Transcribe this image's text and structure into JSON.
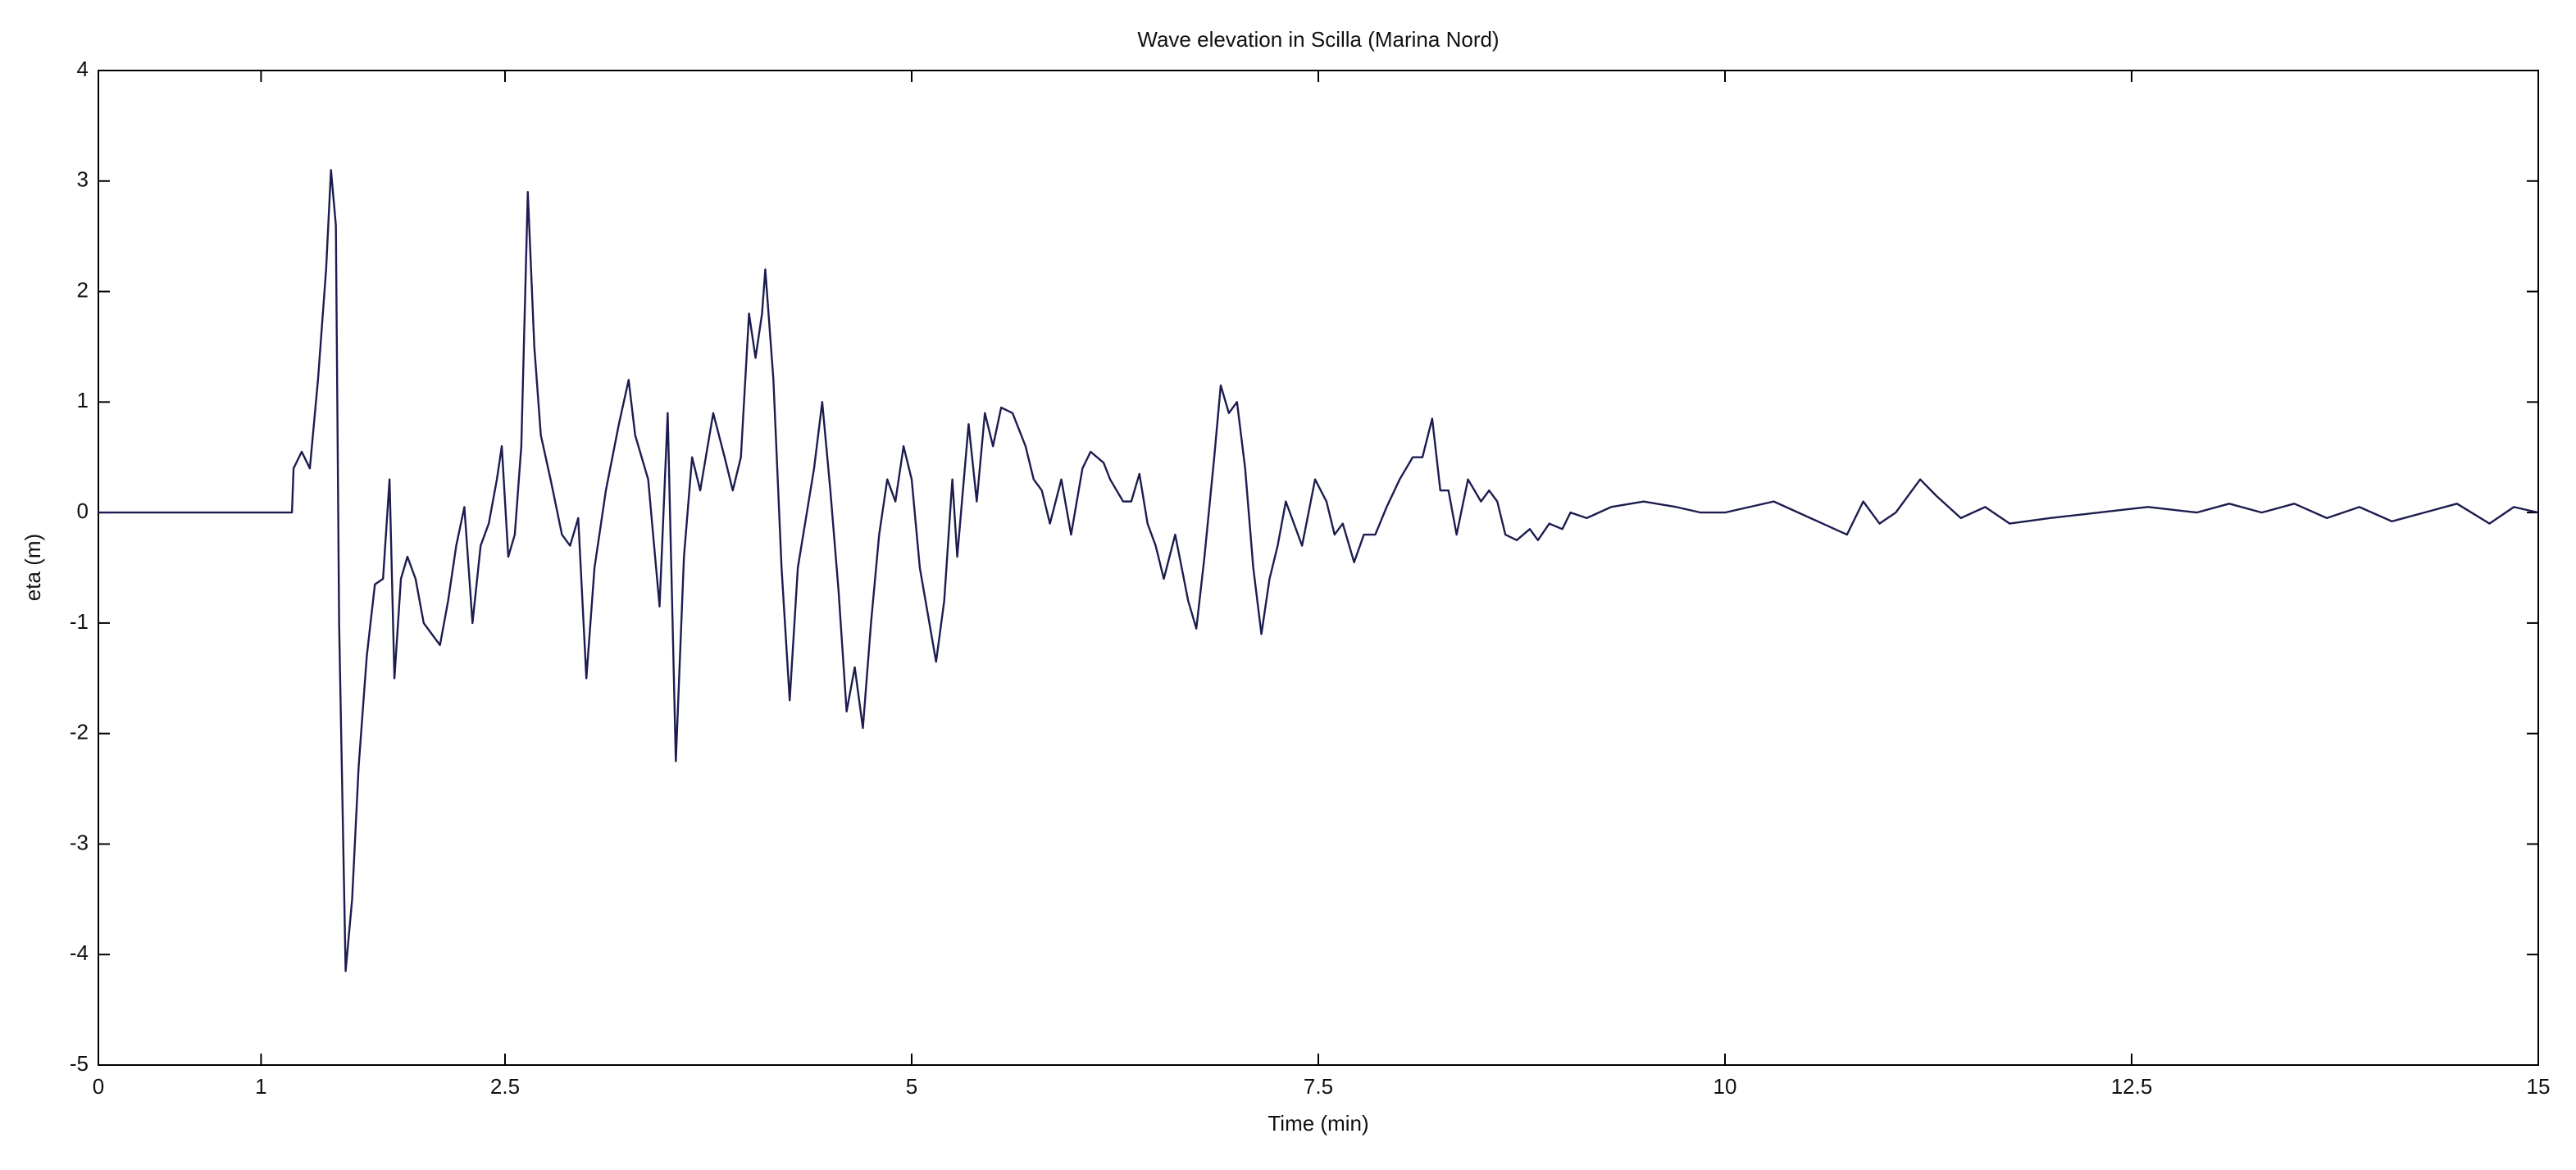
{
  "chart_data": {
    "type": "line",
    "title": "Wave elevation in Scilla (Marina Nord)",
    "xlabel": "Time (min)",
    "ylabel": "eta (m)",
    "xlim": [
      0,
      15
    ],
    "xticks": [
      0,
      1,
      2.5,
      5,
      7.5,
      10,
      12.5,
      15
    ],
    "ylim": [
      -5,
      4
    ],
    "yticks": [
      -5,
      -4,
      -3,
      -2,
      -1,
      0,
      1,
      2,
      3,
      4
    ],
    "grid": false,
    "series": [
      {
        "color": "#1c1c50",
        "x": [
          0,
          1.19,
          1.2,
          1.25,
          1.3,
          1.35,
          1.4,
          1.43,
          1.46,
          1.48,
          1.52,
          1.56,
          1.6,
          1.65,
          1.7,
          1.75,
          1.79,
          1.82,
          1.86,
          1.9,
          1.95,
          2.0,
          2.05,
          2.1,
          2.15,
          2.2,
          2.25,
          2.3,
          2.35,
          2.4,
          2.45,
          2.48,
          2.52,
          2.56,
          2.6,
          2.64,
          2.68,
          2.72,
          2.78,
          2.85,
          2.9,
          2.95,
          3.0,
          3.05,
          3.12,
          3.2,
          3.26,
          3.3,
          3.38,
          3.45,
          3.5,
          3.55,
          3.6,
          3.65,
          3.7,
          3.78,
          3.85,
          3.9,
          3.95,
          4.0,
          4.04,
          4.08,
          4.1,
          4.15,
          4.2,
          4.25,
          4.3,
          4.4,
          4.45,
          4.5,
          4.55,
          4.6,
          4.65,
          4.7,
          4.75,
          4.8,
          4.85,
          4.9,
          4.95,
          5.0,
          5.05,
          5.15,
          5.2,
          5.25,
          5.28,
          5.35,
          5.4,
          5.45,
          5.5,
          5.55,
          5.62,
          5.7,
          5.75,
          5.8,
          5.85,
          5.92,
          5.98,
          6.05,
          6.1,
          6.18,
          6.22,
          6.3,
          6.35,
          6.4,
          6.45,
          6.5,
          6.55,
          6.62,
          6.7,
          6.75,
          6.8,
          6.86,
          6.9,
          6.95,
          7.0,
          7.05,
          7.1,
          7.15,
          7.2,
          7.25,
          7.3,
          7.35,
          7.4,
          7.48,
          7.55,
          7.6,
          7.65,
          7.72,
          7.78,
          7.85,
          7.92,
          8.0,
          8.08,
          8.14,
          8.2,
          8.25,
          8.3,
          8.35,
          8.42,
          8.5,
          8.55,
          8.6,
          8.65,
          8.72,
          8.8,
          8.85,
          8.92,
          9.0,
          9.05,
          9.15,
          9.3,
          9.5,
          9.7,
          9.85,
          10.0,
          10.15,
          10.3,
          10.45,
          10.6,
          10.75,
          10.85,
          10.95,
          11.05,
          11.2,
          11.3,
          11.45,
          11.6,
          11.75,
          12.0,
          12.3,
          12.6,
          12.9,
          13.1,
          13.3,
          13.5,
          13.7,
          13.9,
          14.1,
          14.3,
          14.5,
          14.7,
          14.85,
          15.0
        ],
        "values": [
          0,
          0,
          0.4,
          0.55,
          0.4,
          1.2,
          2.2,
          3.1,
          2.6,
          -1.0,
          -4.15,
          -3.5,
          -2.3,
          -1.3,
          -0.65,
          -0.6,
          0.3,
          -1.5,
          -0.6,
          -0.4,
          -0.6,
          -1.0,
          -1.1,
          -1.2,
          -0.8,
          -0.3,
          0.05,
          -1.0,
          -0.3,
          -0.1,
          0.3,
          0.6,
          -0.4,
          -0.2,
          0.6,
          2.9,
          1.5,
          0.7,
          0.3,
          -0.2,
          -0.3,
          -0.05,
          -1.5,
          -0.5,
          0.2,
          0.8,
          1.2,
          0.7,
          0.3,
          -0.85,
          0.9,
          -2.25,
          -0.4,
          0.5,
          0.2,
          0.9,
          0.5,
          0.2,
          0.5,
          1.8,
          1.4,
          1.8,
          2.2,
          1.2,
          -0.5,
          -1.7,
          -0.5,
          0.4,
          1.0,
          0.2,
          -0.7,
          -1.8,
          -1.4,
          -1.95,
          -1.0,
          -0.2,
          0.3,
          0.1,
          0.6,
          0.3,
          -0.5,
          -1.35,
          -0.8,
          0.3,
          -0.4,
          0.8,
          0.1,
          0.9,
          0.6,
          0.95,
          0.9,
          0.6,
          0.3,
          0.2,
          -0.1,
          0.3,
          -0.2,
          0.4,
          0.55,
          0.45,
          0.3,
          0.1,
          0.1,
          0.35,
          -0.1,
          -0.3,
          -0.6,
          -0.2,
          -0.8,
          -1.05,
          -0.4,
          0.5,
          1.15,
          0.9,
          1.0,
          0.4,
          -0.5,
          -1.1,
          -0.6,
          -0.3,
          0.1,
          -0.1,
          -0.3,
          0.3,
          0.1,
          -0.2,
          -0.1,
          -0.45,
          -0.2,
          -0.2,
          0.05,
          0.3,
          0.5,
          0.5,
          0.85,
          0.2,
          0.2,
          -0.2,
          0.3,
          0.1,
          0.2,
          0.1,
          -0.2,
          -0.25,
          -0.15,
          -0.25,
          -0.1,
          -0.15,
          0.0,
          -0.05,
          0.05,
          0.1,
          0.05,
          0.0,
          0.0,
          0.05,
          0.1,
          0.0,
          -0.1,
          -0.2,
          0.1,
          -0.1,
          0.0,
          0.3,
          0.15,
          -0.05,
          0.05,
          -0.1,
          -0.05,
          0.0,
          0.05,
          0.0,
          0.08,
          0.0,
          0.08,
          -0.05,
          0.05,
          -0.08,
          0.0,
          0.08,
          -0.1,
          0.05,
          0.0
        ]
      }
    ]
  }
}
